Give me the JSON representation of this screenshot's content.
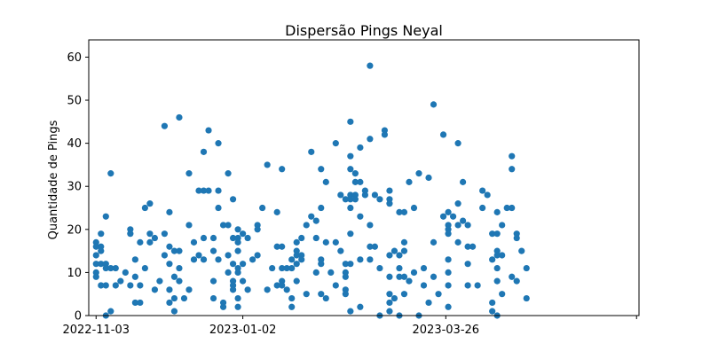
{
  "chart_data": {
    "type": "scatter",
    "title": "Dispersão Pings Neyal",
    "xlabel": "",
    "ylabel": "Quantidade de Pings",
    "x_axis_type": "date",
    "xlim": [
      "2022-10-31",
      "2023-06-13"
    ],
    "ylim": [
      0,
      64
    ],
    "x_ticks": [
      "2022-11-03",
      "2023-01-02",
      "2023-03-26",
      "2023-06-12"
    ],
    "x_tick_labels": [
      "2022-11-03",
      "2023-01-02",
      "2023-03-26",
      ""
    ],
    "y_ticks": [
      0,
      10,
      20,
      30,
      40,
      50,
      60
    ],
    "grid": false,
    "marker_color": "#1f77b4",
    "points": [
      {
        "x": "2022-11-03",
        "y": 17
      },
      {
        "x": "2022-11-03",
        "y": 16
      },
      {
        "x": "2022-11-03",
        "y": 14
      },
      {
        "x": "2022-11-03",
        "y": 12
      },
      {
        "x": "2022-11-03",
        "y": 10
      },
      {
        "x": "2022-11-03",
        "y": 9
      },
      {
        "x": "2022-11-05",
        "y": 19
      },
      {
        "x": "2022-11-05",
        "y": 16
      },
      {
        "x": "2022-11-05",
        "y": 15
      },
      {
        "x": "2022-11-05",
        "y": 12
      },
      {
        "x": "2022-11-05",
        "y": 7
      },
      {
        "x": "2022-11-07",
        "y": 23
      },
      {
        "x": "2022-11-07",
        "y": 12
      },
      {
        "x": "2022-11-07",
        "y": 11
      },
      {
        "x": "2022-11-07",
        "y": 7
      },
      {
        "x": "2022-11-07",
        "y": 0
      },
      {
        "x": "2022-11-09",
        "y": 33
      },
      {
        "x": "2022-11-09",
        "y": 11
      },
      {
        "x": "2022-11-09",
        "y": 1
      },
      {
        "x": "2022-11-11",
        "y": 11
      },
      {
        "x": "2022-11-11",
        "y": 7
      },
      {
        "x": "2022-11-13",
        "y": 8
      },
      {
        "x": "2022-11-15",
        "y": 10
      },
      {
        "x": "2022-11-17",
        "y": 20
      },
      {
        "x": "2022-11-17",
        "y": 19
      },
      {
        "x": "2022-11-17",
        "y": 7
      },
      {
        "x": "2022-11-19",
        "y": 13
      },
      {
        "x": "2022-11-19",
        "y": 9
      },
      {
        "x": "2022-11-19",
        "y": 3
      },
      {
        "x": "2022-11-21",
        "y": 17
      },
      {
        "x": "2022-11-21",
        "y": 7
      },
      {
        "x": "2022-11-21",
        "y": 3
      },
      {
        "x": "2022-11-23",
        "y": 25
      },
      {
        "x": "2022-11-23",
        "y": 11
      },
      {
        "x": "2022-11-25",
        "y": 26
      },
      {
        "x": "2022-11-25",
        "y": 19
      },
      {
        "x": "2022-11-25",
        "y": 17
      },
      {
        "x": "2022-11-27",
        "y": 18
      },
      {
        "x": "2022-11-27",
        "y": 6
      },
      {
        "x": "2022-11-29",
        "y": 8
      },
      {
        "x": "2022-12-01",
        "y": 44
      },
      {
        "x": "2022-12-01",
        "y": 19
      },
      {
        "x": "2022-12-01",
        "y": 14
      },
      {
        "x": "2022-12-03",
        "y": 24
      },
      {
        "x": "2022-12-03",
        "y": 16
      },
      {
        "x": "2022-12-03",
        "y": 12
      },
      {
        "x": "2022-12-03",
        "y": 6
      },
      {
        "x": "2022-12-03",
        "y": 3
      },
      {
        "x": "2022-12-05",
        "y": 15
      },
      {
        "x": "2022-12-05",
        "y": 9
      },
      {
        "x": "2022-12-05",
        "y": 4
      },
      {
        "x": "2022-12-05",
        "y": 1
      },
      {
        "x": "2022-12-07",
        "y": 46
      },
      {
        "x": "2022-12-07",
        "y": 15
      },
      {
        "x": "2022-12-07",
        "y": 11
      },
      {
        "x": "2022-12-07",
        "y": 8
      },
      {
        "x": "2022-12-09",
        "y": 4
      },
      {
        "x": "2022-12-11",
        "y": 33
      },
      {
        "x": "2022-12-11",
        "y": 21
      },
      {
        "x": "2022-12-11",
        "y": 6
      },
      {
        "x": "2022-12-13",
        "y": 17
      },
      {
        "x": "2022-12-13",
        "y": 13
      },
      {
        "x": "2022-12-15",
        "y": 29
      },
      {
        "x": "2022-12-15",
        "y": 14
      },
      {
        "x": "2022-12-17",
        "y": 38
      },
      {
        "x": "2022-12-17",
        "y": 29
      },
      {
        "x": "2022-12-17",
        "y": 18
      },
      {
        "x": "2022-12-17",
        "y": 13
      },
      {
        "x": "2022-12-19",
        "y": 43
      },
      {
        "x": "2022-12-19",
        "y": 29
      },
      {
        "x": "2022-12-21",
        "y": 18
      },
      {
        "x": "2022-12-21",
        "y": 15
      },
      {
        "x": "2022-12-21",
        "y": 8
      },
      {
        "x": "2022-12-21",
        "y": 4
      },
      {
        "x": "2022-12-23",
        "y": 40
      },
      {
        "x": "2022-12-23",
        "y": 29
      },
      {
        "x": "2022-12-23",
        "y": 25
      },
      {
        "x": "2022-12-23",
        "y": 13
      },
      {
        "x": "2022-12-25",
        "y": 21
      },
      {
        "x": "2022-12-25",
        "y": 3
      },
      {
        "x": "2022-12-25",
        "y": 2
      },
      {
        "x": "2022-12-27",
        "y": 33
      },
      {
        "x": "2022-12-27",
        "y": 21
      },
      {
        "x": "2022-12-27",
        "y": 14
      },
      {
        "x": "2022-12-27",
        "y": 10
      },
      {
        "x": "2022-12-29",
        "y": 27
      },
      {
        "x": "2022-12-29",
        "y": 18
      },
      {
        "x": "2022-12-29",
        "y": 12
      },
      {
        "x": "2022-12-29",
        "y": 8
      },
      {
        "x": "2022-12-29",
        "y": 7
      },
      {
        "x": "2022-12-29",
        "y": 6
      },
      {
        "x": "2022-12-31",
        "y": 20
      },
      {
        "x": "2022-12-31",
        "y": 18
      },
      {
        "x": "2022-12-31",
        "y": 17
      },
      {
        "x": "2022-12-31",
        "y": 15
      },
      {
        "x": "2022-12-31",
        "y": 11
      },
      {
        "x": "2022-12-31",
        "y": 10
      },
      {
        "x": "2022-12-31",
        "y": 4
      },
      {
        "x": "2022-12-31",
        "y": 2
      },
      {
        "x": "2023-01-02",
        "y": 19
      },
      {
        "x": "2023-01-02",
        "y": 12
      },
      {
        "x": "2023-01-02",
        "y": 8
      },
      {
        "x": "2023-01-04",
        "y": 18
      },
      {
        "x": "2023-01-04",
        "y": 6
      },
      {
        "x": "2023-01-06",
        "y": 13
      },
      {
        "x": "2023-01-08",
        "y": 21
      },
      {
        "x": "2023-01-08",
        "y": 20
      },
      {
        "x": "2023-01-08",
        "y": 14
      },
      {
        "x": "2023-01-10",
        "y": 25
      },
      {
        "x": "2023-01-12",
        "y": 35
      },
      {
        "x": "2023-01-12",
        "y": 6
      },
      {
        "x": "2023-01-14",
        "y": 11
      },
      {
        "x": "2023-01-16",
        "y": 24
      },
      {
        "x": "2023-01-16",
        "y": 16
      },
      {
        "x": "2023-01-16",
        "y": 7
      },
      {
        "x": "2023-01-18",
        "y": 34
      },
      {
        "x": "2023-01-18",
        "y": 16
      },
      {
        "x": "2023-01-18",
        "y": 11
      },
      {
        "x": "2023-01-18",
        "y": 8
      },
      {
        "x": "2023-01-18",
        "y": 7
      },
      {
        "x": "2023-01-20",
        "y": 11
      },
      {
        "x": "2023-01-20",
        "y": 6
      },
      {
        "x": "2023-01-22",
        "y": 13
      },
      {
        "x": "2023-01-22",
        "y": 11
      },
      {
        "x": "2023-01-22",
        "y": 4
      },
      {
        "x": "2023-01-22",
        "y": 2
      },
      {
        "x": "2023-01-24",
        "y": 17
      },
      {
        "x": "2023-01-24",
        "y": 15
      },
      {
        "x": "2023-01-24",
        "y": 14
      },
      {
        "x": "2023-01-24",
        "y": 12
      },
      {
        "x": "2023-01-24",
        "y": 8
      },
      {
        "x": "2023-01-26",
        "y": 18
      },
      {
        "x": "2023-01-26",
        "y": 14
      },
      {
        "x": "2023-01-26",
        "y": 13
      },
      {
        "x": "2023-01-28",
        "y": 21
      },
      {
        "x": "2023-01-28",
        "y": 5
      },
      {
        "x": "2023-01-30",
        "y": 38
      },
      {
        "x": "2023-01-30",
        "y": 23
      },
      {
        "x": "2023-02-01",
        "y": 22
      },
      {
        "x": "2023-02-01",
        "y": 18
      },
      {
        "x": "2023-02-01",
        "y": 10
      },
      {
        "x": "2023-02-03",
        "y": 34
      },
      {
        "x": "2023-02-03",
        "y": 25
      },
      {
        "x": "2023-02-03",
        "y": 13
      },
      {
        "x": "2023-02-03",
        "y": 12
      },
      {
        "x": "2023-02-03",
        "y": 5
      },
      {
        "x": "2023-02-05",
        "y": 31
      },
      {
        "x": "2023-02-05",
        "y": 17
      },
      {
        "x": "2023-02-05",
        "y": 4
      },
      {
        "x": "2023-02-07",
        "y": 10
      },
      {
        "x": "2023-02-09",
        "y": 40
      },
      {
        "x": "2023-02-09",
        "y": 17
      },
      {
        "x": "2023-02-09",
        "y": 7
      },
      {
        "x": "2023-02-11",
        "y": 28
      },
      {
        "x": "2023-02-11",
        "y": 15
      },
      {
        "x": "2023-02-13",
        "y": 27
      },
      {
        "x": "2023-02-13",
        "y": 12
      },
      {
        "x": "2023-02-13",
        "y": 10
      },
      {
        "x": "2023-02-13",
        "y": 9
      },
      {
        "x": "2023-02-13",
        "y": 6
      },
      {
        "x": "2023-02-13",
        "y": 5
      },
      {
        "x": "2023-02-15",
        "y": 45
      },
      {
        "x": "2023-02-15",
        "y": 37
      },
      {
        "x": "2023-02-15",
        "y": 34
      },
      {
        "x": "2023-02-15",
        "y": 28
      },
      {
        "x": "2023-02-15",
        "y": 27
      },
      {
        "x": "2023-02-15",
        "y": 25
      },
      {
        "x": "2023-02-15",
        "y": 19
      },
      {
        "x": "2023-02-15",
        "y": 12
      },
      {
        "x": "2023-02-15",
        "y": 1
      },
      {
        "x": "2023-02-17",
        "y": 33
      },
      {
        "x": "2023-02-17",
        "y": 31
      },
      {
        "x": "2023-02-17",
        "y": 28
      },
      {
        "x": "2023-02-17",
        "y": 27
      },
      {
        "x": "2023-02-19",
        "y": 39
      },
      {
        "x": "2023-02-19",
        "y": 31
      },
      {
        "x": "2023-02-19",
        "y": 23
      },
      {
        "x": "2023-02-19",
        "y": 13
      },
      {
        "x": "2023-02-19",
        "y": 2
      },
      {
        "x": "2023-02-21",
        "y": 28
      },
      {
        "x": "2023-02-21",
        "y": 29
      },
      {
        "x": "2023-02-23",
        "y": 58
      },
      {
        "x": "2023-02-23",
        "y": 41
      },
      {
        "x": "2023-02-23",
        "y": 21
      },
      {
        "x": "2023-02-23",
        "y": 16
      },
      {
        "x": "2023-02-23",
        "y": 13
      },
      {
        "x": "2023-02-25",
        "y": 28
      },
      {
        "x": "2023-02-25",
        "y": 16
      },
      {
        "x": "2023-02-27",
        "y": 27
      },
      {
        "x": "2023-02-27",
        "y": 11
      },
      {
        "x": "2023-02-27",
        "y": 0
      },
      {
        "x": "2023-03-01",
        "y": 43
      },
      {
        "x": "2023-03-01",
        "y": 42
      },
      {
        "x": "2023-03-03",
        "y": 29
      },
      {
        "x": "2023-03-03",
        "y": 27
      },
      {
        "x": "2023-03-03",
        "y": 26
      },
      {
        "x": "2023-03-03",
        "y": 14
      },
      {
        "x": "2023-03-03",
        "y": 9
      },
      {
        "x": "2023-03-03",
        "y": 5
      },
      {
        "x": "2023-03-03",
        "y": 3
      },
      {
        "x": "2023-03-03",
        "y": 1
      },
      {
        "x": "2023-03-05",
        "y": 15
      },
      {
        "x": "2023-03-05",
        "y": 4
      },
      {
        "x": "2023-03-07",
        "y": 24
      },
      {
        "x": "2023-03-07",
        "y": 14
      },
      {
        "x": "2023-03-07",
        "y": 11
      },
      {
        "x": "2023-03-07",
        "y": 9
      },
      {
        "x": "2023-03-07",
        "y": 0
      },
      {
        "x": "2023-03-09",
        "y": 24
      },
      {
        "x": "2023-03-09",
        "y": 17
      },
      {
        "x": "2023-03-09",
        "y": 15
      },
      {
        "x": "2023-03-09",
        "y": 9
      },
      {
        "x": "2023-03-09",
        "y": 5
      },
      {
        "x": "2023-03-11",
        "y": 31
      },
      {
        "x": "2023-03-11",
        "y": 8
      },
      {
        "x": "2023-03-13",
        "y": 25
      },
      {
        "x": "2023-03-13",
        "y": 10
      },
      {
        "x": "2023-03-15",
        "y": 33
      },
      {
        "x": "2023-03-15",
        "y": 0
      },
      {
        "x": "2023-03-17",
        "y": 11
      },
      {
        "x": "2023-03-17",
        "y": 7
      },
      {
        "x": "2023-03-19",
        "y": 32
      },
      {
        "x": "2023-03-19",
        "y": 3
      },
      {
        "x": "2023-03-21",
        "y": 49
      },
      {
        "x": "2023-03-21",
        "y": 17
      },
      {
        "x": "2023-03-21",
        "y": 9
      },
      {
        "x": "2023-03-23",
        "y": 5
      },
      {
        "x": "2023-03-25",
        "y": 42
      },
      {
        "x": "2023-03-25",
        "y": 23
      },
      {
        "x": "2023-03-27",
        "y": 24
      },
      {
        "x": "2023-03-27",
        "y": 21
      },
      {
        "x": "2023-03-27",
        "y": 20
      },
      {
        "x": "2023-03-27",
        "y": 19
      },
      {
        "x": "2023-03-27",
        "y": 13
      },
      {
        "x": "2023-03-27",
        "y": 10
      },
      {
        "x": "2023-03-27",
        "y": 7
      },
      {
        "x": "2023-03-27",
        "y": 2
      },
      {
        "x": "2023-03-29",
        "y": 23
      },
      {
        "x": "2023-03-31",
        "y": 40
      },
      {
        "x": "2023-03-31",
        "y": 26
      },
      {
        "x": "2023-03-31",
        "y": 21
      },
      {
        "x": "2023-03-31",
        "y": 17
      },
      {
        "x": "2023-04-02",
        "y": 31
      },
      {
        "x": "2023-04-02",
        "y": 22
      },
      {
        "x": "2023-04-04",
        "y": 21
      },
      {
        "x": "2023-04-04",
        "y": 16
      },
      {
        "x": "2023-04-04",
        "y": 12
      },
      {
        "x": "2023-04-04",
        "y": 7
      },
      {
        "x": "2023-04-06",
        "y": 16
      },
      {
        "x": "2023-04-08",
        "y": 7
      },
      {
        "x": "2023-04-10",
        "y": 29
      },
      {
        "x": "2023-04-10",
        "y": 25
      },
      {
        "x": "2023-04-12",
        "y": 28
      },
      {
        "x": "2023-04-14",
        "y": 19
      },
      {
        "x": "2023-04-14",
        "y": 13
      },
      {
        "x": "2023-04-14",
        "y": 3
      },
      {
        "x": "2023-04-14",
        "y": 1
      },
      {
        "x": "2023-04-16",
        "y": 24
      },
      {
        "x": "2023-04-16",
        "y": 19
      },
      {
        "x": "2023-04-16",
        "y": 15
      },
      {
        "x": "2023-04-16",
        "y": 14
      },
      {
        "x": "2023-04-16",
        "y": 11
      },
      {
        "x": "2023-04-16",
        "y": 8
      },
      {
        "x": "2023-04-16",
        "y": 0
      },
      {
        "x": "2023-04-18",
        "y": 21
      },
      {
        "x": "2023-04-18",
        "y": 14
      },
      {
        "x": "2023-04-18",
        "y": 5
      },
      {
        "x": "2023-04-20",
        "y": 25
      },
      {
        "x": "2023-04-22",
        "y": 37
      },
      {
        "x": "2023-04-22",
        "y": 34
      },
      {
        "x": "2023-04-22",
        "y": 25
      },
      {
        "x": "2023-04-22",
        "y": 9
      },
      {
        "x": "2023-04-24",
        "y": 19
      },
      {
        "x": "2023-04-24",
        "y": 18
      },
      {
        "x": "2023-04-24",
        "y": 8
      },
      {
        "x": "2023-04-26",
        "y": 15
      },
      {
        "x": "2023-04-28",
        "y": 11
      },
      {
        "x": "2023-04-28",
        "y": 4
      }
    ]
  }
}
